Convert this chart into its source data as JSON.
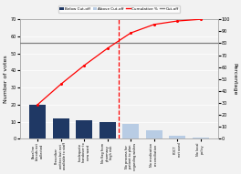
{
  "categories": [
    "Baseline\nbloods not\ncollected",
    "Prescriber\nwritten but not\navailable to staff",
    "Inadequate\nhandover to\nnew ward",
    "No flag from\npharmacy\nhigh risk",
    "No process for\npatient to plan\nregarding wishes",
    "No medication\nreconciliation",
    "POCT\nnot used",
    "No local\npolicy"
  ],
  "values": [
    20,
    12,
    11,
    10,
    9,
    5,
    2,
    1
  ],
  "cumulative_pct": [
    28.6,
    45.7,
    61.4,
    75.7,
    88.6,
    95.7,
    98.6,
    100.0
  ],
  "cutoff_index": 3,
  "below_cutoff_color": "#1f3864",
  "above_cutoff_color": "#b8cce4",
  "cumulative_line_color": "#ff0000",
  "cutoff_line_color": "#7f7f7f",
  "cutoff_pct": 80.0,
  "ylabel_left": "Number of votes",
  "ylabel_right": "Percentage",
  "ylim_left": [
    0,
    70
  ],
  "ylim_right": [
    0,
    100
  ],
  "yticks_left": [
    0,
    10,
    20,
    30,
    40,
    50,
    60,
    70
  ],
  "yticks_right": [
    0,
    10,
    20,
    30,
    40,
    50,
    60,
    70,
    80,
    90,
    100
  ],
  "legend_labels": [
    "Below Cut-off",
    "Above Cut-off",
    "Cumulative %",
    "Cut-off"
  ],
  "background_color": "#f2f2f2"
}
